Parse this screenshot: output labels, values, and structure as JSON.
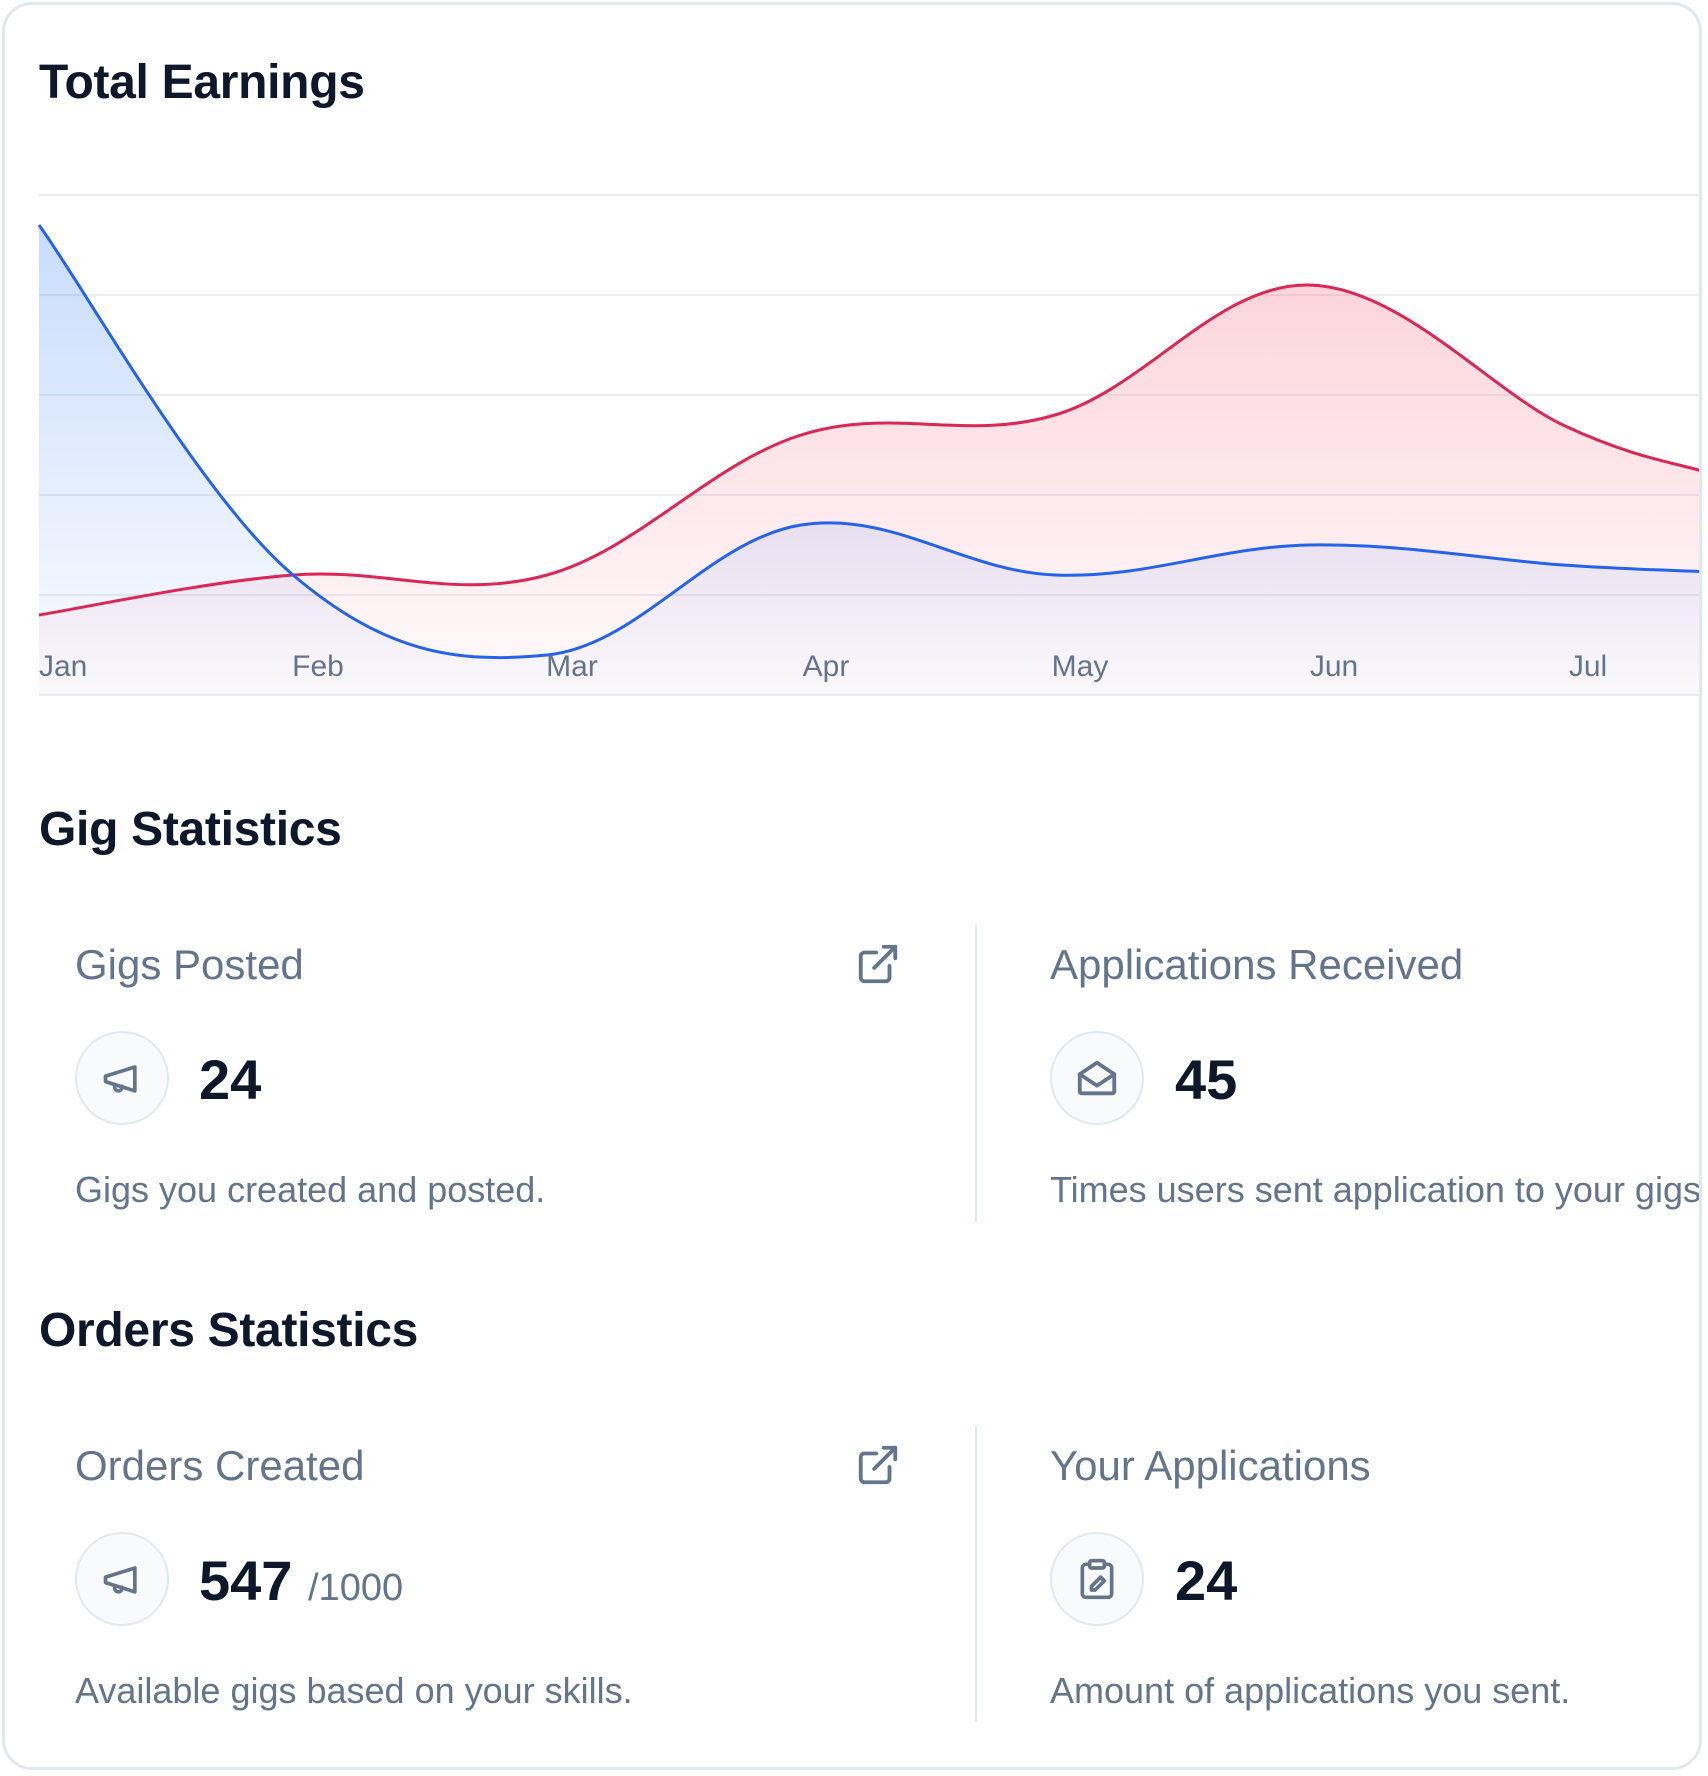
{
  "earnings": {
    "title": "Total Earnings"
  },
  "chart_data": {
    "type": "area",
    "categories": [
      "Jan",
      "Feb",
      "Mar",
      "Apr",
      "May",
      "Jun",
      "Jul"
    ],
    "series": [
      {
        "color": "#2563eb",
        "values": [
          9.4,
          2.4,
          0.8,
          3.4,
          2.4,
          3.0,
          2.6
        ]
      },
      {
        "color": "#db2755",
        "values": [
          1.6,
          2.4,
          2.4,
          5.2,
          5.6,
          8.2,
          5.4
        ]
      }
    ],
    "ylim": [
      0,
      10
    ],
    "grid": true,
    "xlabel": "",
    "ylabel": ""
  },
  "gig_stats": {
    "title": "Gig Statistics",
    "gigs_posted": {
      "label": "Gigs Posted",
      "value": "24",
      "description": "Gigs you created and posted.",
      "icon": "megaphone-icon"
    },
    "applications_received": {
      "label": "Applications Received",
      "value": "45",
      "description": "Times users sent application to your gigs.",
      "icon": "envelope-open-icon"
    }
  },
  "order_stats": {
    "title": "Orders Statistics",
    "orders_created": {
      "label": "Orders Created",
      "value": "547",
      "suffix": "/1000",
      "description": "Available gigs based on your skills.",
      "icon": "megaphone-icon"
    },
    "your_applications": {
      "label": "Your Applications",
      "value": "24",
      "description": "Amount of applications you sent.",
      "icon": "clipboard-edit-icon"
    }
  },
  "colors": {
    "blue": "#2563eb",
    "red": "#db2755",
    "text_dark": "#0f172a",
    "text_muted": "#64748b"
  }
}
